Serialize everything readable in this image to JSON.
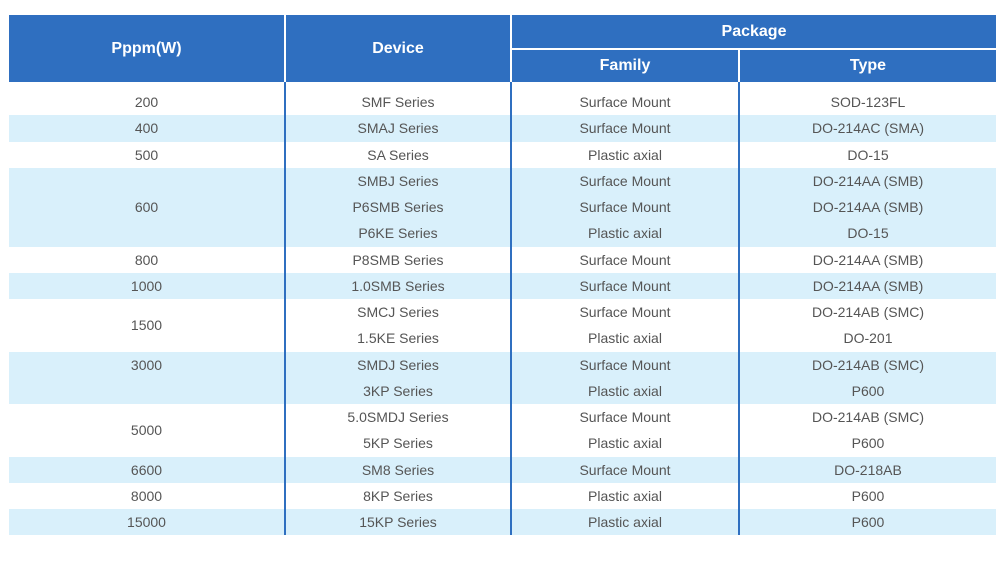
{
  "header": {
    "pppm": "Pppm(W)",
    "device": "Device",
    "package": "Package",
    "family": "Family",
    "type": "Type"
  },
  "colors": {
    "header": "#2f6fc0",
    "stripe": "#d9f0fb",
    "text": "#555555"
  },
  "groups": [
    {
      "pppm": "200",
      "blue": false,
      "rows": [
        [
          "SMF Series",
          "Surface Mount",
          "SOD-123FL"
        ]
      ]
    },
    {
      "pppm": "400",
      "blue": true,
      "rows": [
        [
          "SMAJ Series",
          "Surface Mount",
          "DO-214AC (SMA)"
        ]
      ]
    },
    {
      "pppm": "500",
      "blue": false,
      "rows": [
        [
          "SA Series",
          "Plastic axial",
          "DO-15"
        ]
      ]
    },
    {
      "pppm": "600",
      "blue": true,
      "rows": [
        [
          "SMBJ Series",
          "Surface Mount",
          "DO-214AA (SMB)"
        ],
        [
          "P6SMB Series",
          "Surface Mount",
          "DO-214AA (SMB)"
        ],
        [
          "P6KE Series",
          "Plastic axial",
          "DO-15"
        ]
      ]
    },
    {
      "pppm": "800",
      "blue": false,
      "rows": [
        [
          "P8SMB Series",
          "Surface Mount",
          "DO-214AA (SMB)"
        ]
      ]
    },
    {
      "pppm": "1000",
      "blue": true,
      "rows": [
        [
          "1.0SMB Series",
          "Surface Mount",
          "DO-214AA (SMB)"
        ]
      ]
    },
    {
      "pppm": "1500",
      "blue": false,
      "rows": [
        [
          "SMCJ Series",
          "Surface Mount",
          "DO-214AB (SMC)"
        ],
        [
          "1.5KE Series",
          "Plastic axial",
          "DO-201"
        ]
      ]
    },
    {
      "pppm": "3000",
      "blue": true,
      "rows": [
        [
          "SMDJ Series",
          "Surface Mount",
          "DO-214AB (SMC)"
        ]
      ]
    },
    {
      "pppm": "",
      "blue": true,
      "rows": [
        [
          "3KP Series",
          "Plastic axial",
          "P600"
        ]
      ]
    },
    {
      "pppm": "5000",
      "blue": false,
      "rows": [
        [
          "5.0SMDJ Series",
          "Surface Mount",
          "DO-214AB (SMC)"
        ],
        [
          "5KP Series",
          "Plastic axial",
          "P600"
        ]
      ]
    },
    {
      "pppm": "6600",
      "blue": true,
      "rows": [
        [
          "SM8 Series",
          "Surface Mount",
          "DO-218AB"
        ]
      ]
    },
    {
      "pppm": "8000",
      "blue": false,
      "rows": [
        [
          "8KP Series",
          "Plastic axial",
          "P600"
        ]
      ]
    },
    {
      "pppm": "15000",
      "blue": true,
      "rows": [
        [
          "15KP Series",
          "Plastic axial",
          "P600"
        ]
      ]
    }
  ]
}
